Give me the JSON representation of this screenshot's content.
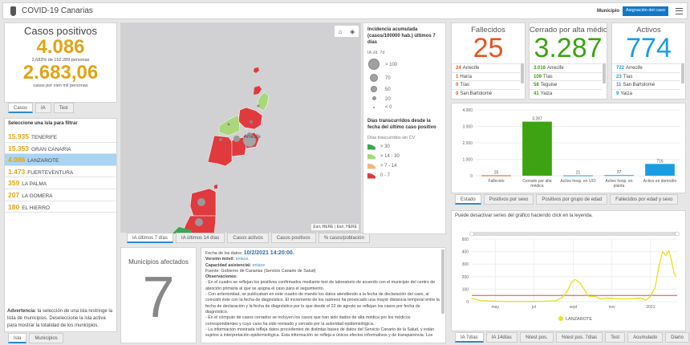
{
  "header": {
    "title": "COVID-19 Canarias",
    "municipio_label": "Municipio",
    "assign_button": "Asignación del caso",
    "logo": "canarias-shield-icon",
    "menu_icon": "hamburger-menu-icon"
  },
  "positives": {
    "title": "Casos positivos",
    "value": "4.086",
    "subtitle": "2,683% de 152.289 personas",
    "rate": "2.683,06",
    "rate_label": "casos por cien mil personas",
    "color": "#e0a416",
    "tabs": [
      "Casos",
      "IA",
      "Test"
    ]
  },
  "islands": {
    "title": "Seleccione una isla para filtrar",
    "items": [
      {
        "value": "15.935",
        "name": "TENERIFE"
      },
      {
        "value": "15.353",
        "name": "GRAN CANARIA"
      },
      {
        "value": "4.086",
        "name": "LANZAROTE",
        "selected": true
      },
      {
        "value": "1.473",
        "name": "FUERTEVENTURA"
      },
      {
        "value": "359",
        "name": "LA PALMA"
      },
      {
        "value": "207",
        "name": "LA GOMERA"
      },
      {
        "value": "180",
        "name": "EL HIERRO"
      }
    ],
    "warning_bold": "Advertencia",
    "warning_text": ": la selección de una isla restringe la lista de municipios. Deseleccione la isla activa para mostrar la totalidad de los municipios.",
    "tabs": [
      "Isla",
      "Municipios"
    ]
  },
  "map": {
    "label_arrecife": "Arrecife",
    "attribution": "Esri, HERE | Esri, HERE",
    "tabs": [
      "IA últimos 7 días",
      "IA últimos 14 días",
      "Casos activos",
      "Casos positivos",
      "% casos/población"
    ],
    "home_icon": "home-icon",
    "layers_icon": "layers-icon"
  },
  "legend": {
    "title1": "Incidencia acumulada (casos/100000 hab.) últimos 7 días",
    "sub1": "IA últ. 7d",
    "sizes": [
      "> 100",
      "70",
      "50",
      "20",
      "< 0"
    ],
    "title2": "Días transcurridos desde la fecha del último caso positivo",
    "sub2": "Días trascurridos sin CV",
    "classes": [
      {
        "label": "> 30",
        "color": "#3aa655"
      },
      {
        "label": "> 14 - 30",
        "color": "#a8d87a"
      },
      {
        "label": "> 7 - 14",
        "color": "#f5b57a"
      },
      {
        "label": "0 - 7",
        "color": "#e03a3e"
      }
    ]
  },
  "municipios": {
    "title": "Municipios afectados",
    "value": "7"
  },
  "info": {
    "date_label": "Fecha de los datos:",
    "date": "10/2/2021 14:20:00.",
    "mobile_label": "Versión móvil:",
    "mobile_link": "enlace.",
    "capacity_label": "Capacidad asistencial:",
    "capacity_link": "enlace",
    "source": "Fuente: Gobierno de Canarias (Servicio Canario de Salud)",
    "obs_label": "Observaciones:",
    "paragraphs": [
      "- En el cuadro se reflejan los positivos confirmados mediante test de laboratorio de acuerdo con el municipio del centro de atención primaria al que se asigna el caso para el seguimiento.",
      "- Con anterioridad, se publicaban en este cuadro de mando los datos atendiendo a la fecha de declaración del caso, al coincidir éste con la fecha de diagnóstico. El incremento de los rastreos ha provocado una mayor distancia temporal entre la fecha de declaración y la fecha de diagnóstico por lo que desde el 22 de agosto se reflejan los casos por fecha de diagnóstico.",
      "- En el cómputo de casos cerrados se incluyen los casos que han sido dados de alta médica por los médicos correspondientes y cuyo caso ha sido revisado y cerrado por la autoridad epidemiológica.",
      "- La información mostrada refleja datos procedentes de distintas bases de datos del Servicio Canario de la Salud, y están sujetos a interpretación epidemiológica. Esta información se refleja a únicos efectos informativos y de transparencia. Los"
    ]
  },
  "kpis": [
    {
      "title": "Fallecidos",
      "value": "25",
      "color": "#e8531e",
      "items": [
        {
          "v": "24",
          "n": "Arrecife"
        },
        {
          "v": "1",
          "n": "Haría"
        },
        {
          "v": "0",
          "n": "Tías"
        },
        {
          "v": "0",
          "n": "San Bartolomé"
        }
      ]
    },
    {
      "title": "Cerrado por alta médica",
      "value": "3.287",
      "color": "#3ea312",
      "items": [
        {
          "v": "3.018",
          "n": "Arrecife"
        },
        {
          "v": "109",
          "n": "Tías"
        },
        {
          "v": "58",
          "n": "Teguise"
        },
        {
          "v": "41",
          "n": "Yaiza"
        }
      ]
    },
    {
      "title": "Activos",
      "value": "774",
      "color": "#1a9de0",
      "items": [
        {
          "v": "722",
          "n": "Arrecife"
        },
        {
          "v": "23",
          "n": "Tías"
        },
        {
          "v": "11",
          "n": "San Bartolomé"
        },
        {
          "v": "9",
          "n": "Yaiza"
        }
      ]
    }
  ],
  "status_tabs": [
    "Estado",
    "Positivos por sexo",
    "Positivos por grupo de edad",
    "Fallecidos por edad y sexo"
  ],
  "line_note": "Puede desactivar series del gráfico haciendo click en la leyenda.",
  "line_tabs": [
    "IA 7días",
    "IA 14días",
    "%test pos.",
    "%test pos. 7días",
    "Test",
    "Acumulado",
    "Diario"
  ],
  "chart_data": [
    {
      "type": "bar",
      "categories": [
        "Fallecido",
        "Cerrado por alta médica",
        "Activo hosp. en UCI",
        "Activo hosp. en planta",
        "Activo en domicilio"
      ],
      "values": [
        25,
        3287,
        21,
        37,
        716
      ],
      "value_labels": [
        "25",
        "3.287",
        "21",
        "37",
        "716"
      ],
      "colors": [
        "#e8531e",
        "#3ea312",
        "#1a9de0",
        "#1a9de0",
        "#1a9de0"
      ],
      "ylim": [
        0,
        4000
      ],
      "yticks": [
        "0",
        "1.000",
        "2.000",
        "3.000",
        "4.000"
      ],
      "grid": true
    },
    {
      "type": "line",
      "series": [
        {
          "name": "LANZAROTE",
          "color": "#e6e21a",
          "x": [
            "2020-03-25",
            "2020-04-10",
            "2020-05-01",
            "2020-05-20",
            "2020-06-10",
            "2020-07-01",
            "2020-07-20",
            "2020-08-05",
            "2020-08-15",
            "2020-08-22",
            "2020-08-30",
            "2020-09-04",
            "2020-09-12",
            "2020-09-18",
            "2020-09-25",
            "2020-10-05",
            "2020-10-15",
            "2020-10-25",
            "2020-11-05",
            "2020-11-20",
            "2020-12-05",
            "2020-12-15",
            "2020-12-25",
            "2021-01-01",
            "2021-01-08",
            "2021-01-15",
            "2021-01-20",
            "2021-01-25",
            "2021-01-30",
            "2021-02-03",
            "2021-02-07",
            "2021-02-10"
          ],
          "y": [
            25,
            8,
            4,
            2,
            2,
            2,
            4,
            8,
            35,
            80,
            160,
            178,
            150,
            100,
            45,
            42,
            22,
            30,
            25,
            22,
            25,
            30,
            12,
            45,
            110,
            300,
            400,
            370,
            405,
            330,
            230,
            205
          ]
        }
      ],
      "threshold": 50,
      "threshold_color": "#c0392b",
      "ylim": [
        0,
        500
      ],
      "yticks": [
        "0",
        "100",
        "200",
        "300",
        "400",
        "500"
      ],
      "xticks": [
        {
          "label": "may",
          "date": "2020-05-01"
        },
        {
          "label": "jul",
          "date": "2020-07-01"
        },
        {
          "label": "sept",
          "date": "2020-09-01"
        },
        {
          "label": "nov",
          "date": "2020-11-01"
        },
        {
          "label": "2021",
          "date": "2021-01-01"
        }
      ],
      "grid": true,
      "legend": "bottom"
    }
  ]
}
